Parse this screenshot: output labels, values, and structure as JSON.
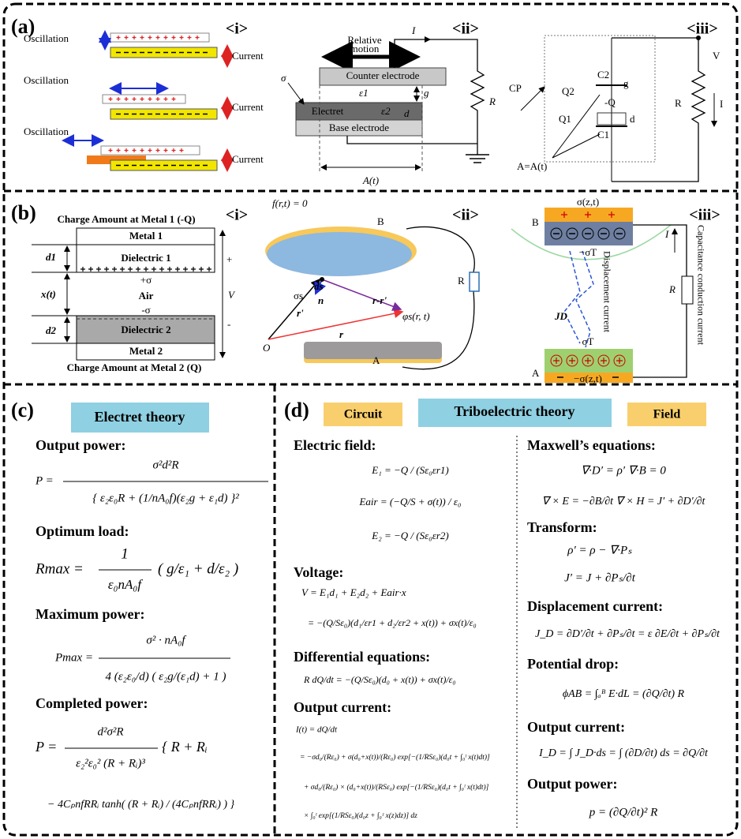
{
  "panel_a": {
    "label": "(a)",
    "sub": [
      "<i>",
      "<ii>",
      "<iii>"
    ],
    "i": {
      "oscillation": [
        "Oscillation",
        "Oscillation",
        "Oscillation"
      ],
      "current": [
        "Current",
        "Current",
        "Current"
      ]
    },
    "ii": {
      "relative_motion": [
        "Relative",
        "motion"
      ],
      "current": "I",
      "counter": "Counter electrode",
      "eps1": "ε1",
      "g": "g",
      "electret": "Electret",
      "eps2": "ε2",
      "d": "d",
      "base": "Base electrode",
      "sigma": "σ",
      "r": "R",
      "area": "A(t)"
    },
    "iii": {
      "cp": "CP",
      "q2": "Q2",
      "c2": "C2",
      "g": "g",
      "neg_q": "-Q",
      "q1": "Q1",
      "d": "d",
      "c1": "C1",
      "area": "A=A(t)",
      "v": "V",
      "r": "R",
      "i": "I"
    }
  },
  "panel_b": {
    "label": "(b)",
    "sub": [
      "<i>",
      "<ii>",
      "<iii>"
    ],
    "i": {
      "top": "Charge Amount at Metal 1 (-Q)",
      "metal1": "Metal 1",
      "d1": "d1",
      "dielectric1": "Dielectric 1",
      "plus_sigma": "+σ",
      "xt": "x(t)",
      "air": "Air",
      "minus_sigma": "-σ",
      "d2": "d2",
      "dielectric2": "Dielectric 2",
      "metal2": "Metal 2",
      "bottom": "Charge Amount at Metal 2 (Q)",
      "plus": "+",
      "v": "V",
      "minus": "-"
    },
    "ii": {
      "surface": "f(r,t) = 0",
      "b": "B",
      "ds": "ds",
      "sigma_s": "σs",
      "n": "n",
      "r_prime": "r'",
      "r_diff": "r-r'",
      "phi": "φs(r, t)",
      "r": "r",
      "o": "O",
      "a": "A",
      "res": "R"
    },
    "iii": {
      "sigma_top": "σ(z,t)",
      "b": "B",
      "neg_sigma_t": "−σT",
      "displacement": "Displacement current",
      "jd": "JD",
      "i": "I",
      "r": "R",
      "capacitance": "Capacitance conduction current",
      "sigma_t": "σT",
      "a": "A",
      "neg_sigma_bottom": "−σ(z,t)"
    }
  },
  "panel_c": {
    "label": "(c)",
    "title": "Electret theory",
    "sections": [
      {
        "heading": "Output power:",
        "eq": [
          "P =",
          "σ²d²R",
          "{ ε₂ε₀R + (1/nA₀f)(ε₂g + ε₁d) }²"
        ]
      },
      {
        "heading": "Optimum load:",
        "eq": [
          "Rmax =",
          "1",
          "ε₀nA₀f",
          "( g/ε₁ + d/ε₂ )"
        ]
      },
      {
        "heading": "Maximum power:",
        "eq": [
          "Pmax =",
          "σ² · nA₀f",
          "4 (ε₂ε₀/d) ( ε₂g/(ε₁d) + 1 )"
        ]
      },
      {
        "heading": "Completed power:",
        "eq": [
          "P =",
          "d²σ²R",
          "ε₂²ε₀² (R + Rᵢ)³",
          "{ R + Rᵢ",
          "− 4CₚnfRRᵢ tanh( (R + Rᵢ) / (4CₚnfRRᵢ) ) }"
        ]
      }
    ]
  },
  "panel_d": {
    "label": "(d)",
    "tags": [
      "Circuit",
      "Triboelectric theory",
      "Field"
    ],
    "left": [
      {
        "heading": "Electric field:",
        "eq": [
          "E₁ = −Q / (Sε₀εr1)",
          "Eair = (−Q/S + σ(t)) / ε₀",
          "E₂ = −Q / (Sε₀εr2)"
        ]
      },
      {
        "heading": "Voltage:",
        "eq": [
          "V = E₁d₁ + E₂d₂ + Eair·x",
          "= −(Q/Sε₀)(d₁/εr1 + d₂/εr2 + x(t)) + σx(t)/ε₀"
        ]
      },
      {
        "heading": "Differential equations:",
        "eq": [
          "R dQ/dt = −(Q/Sε₀)(d₀ + x(t)) + σx(t)/ε₀"
        ]
      },
      {
        "heading": "Output current:",
        "eq": [
          "I(t) = dQ/dt",
          "= −σd₀/(Rε₀) + σ(d₀+x(t))/(Rε₀) exp[−(1/RSε₀)(d₀t + ∫₀ᵗ x(t)dt)]",
          "+ σd₀/(Rε₀) × (d₀+x(t))/(RSε₀) exp[−(1/RSε₀)(d₀t + ∫₀ᵗ x(t)dt)]",
          "× ∫₀ᵗ exp[(1/RSε₀)(d₀z + ∫₀ᶻ x(z)dz)] dz"
        ]
      }
    ],
    "right": [
      {
        "heading": "Maxwell’s equations:",
        "eq": [
          "∇·D′ = ρ′        ∇·B = 0",
          "∇ × E = −∂B/∂t    ∇ × H = J′ + ∂D′/∂t"
        ]
      },
      {
        "heading": "Transform:",
        "eq": [
          "ρ′ = ρ − ∇·Pₛ",
          "J′ = J + ∂Pₛ/∂t"
        ]
      },
      {
        "heading": "Displacement current:",
        "eq": [
          "J_D = ∂D′/∂t + ∂Pₛ/∂t = ε ∂E/∂t + ∂Pₛ/∂t"
        ]
      },
      {
        "heading": "Potential drop:",
        "eq": [
          "ϕAB = ∫ₐᴮ E·dL = (∂Q/∂t) R"
        ]
      },
      {
        "heading": "Output current:",
        "eq": [
          "I_D = ∫ J_D·ds = ∫ (∂D/∂t) ds = ∂Q/∂t"
        ]
      },
      {
        "heading": "Output power:",
        "eq": [
          "p = (∂Q/∂t)² R"
        ]
      }
    ]
  }
}
